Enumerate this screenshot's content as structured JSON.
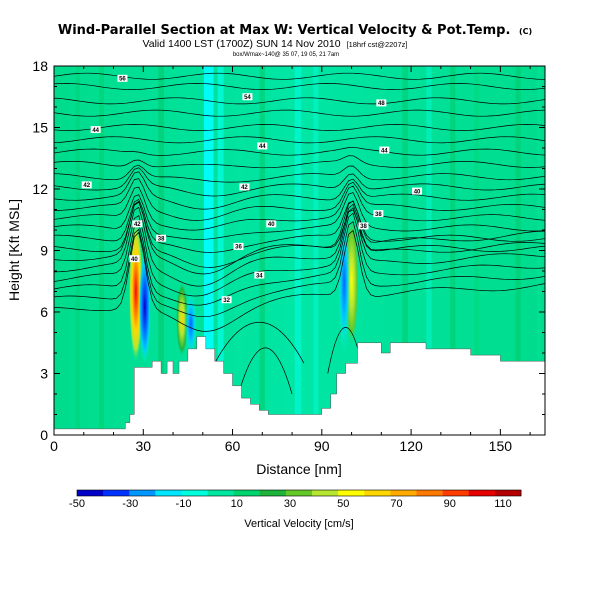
{
  "chart_data": {
    "type": "heatmap",
    "title": "Wind-Parallel Section at Max W: Vertical Velocity & Pot.Temp.",
    "title_mark": "(C)",
    "subtitle": "Valid 1400 LST (1700Z) SUN 14 Nov 2010",
    "subtitle_note": "[18hrf cst@2207z]",
    "small_note": "box/Wmax~140@ 35 07, 19 05, 21 7am",
    "xlabel": "Distance [nm]",
    "ylabel": "Height [Kft MSL]",
    "xlim": [
      0,
      165
    ],
    "ylim": [
      0,
      18
    ],
    "xticks": [
      "0",
      "30",
      "60",
      "90",
      "120",
      "150"
    ],
    "yticks": [
      "0",
      "3",
      "6",
      "9",
      "12",
      "15",
      "18"
    ],
    "colorbar": {
      "label": "Vertical Velocity [cm/s]",
      "tick_labels": [
        "-50",
        "-30",
        "-10",
        "10",
        "30",
        "50",
        "70",
        "90",
        "110"
      ],
      "colors": [
        "#0000c8",
        "#0032ff",
        "#0096ff",
        "#00e6ff",
        "#00ffdc",
        "#00e8a0",
        "#00d46e",
        "#1eb43c",
        "#64c828",
        "#b4e632",
        "#ffff00",
        "#ffd700",
        "#ffaa00",
        "#ff7800",
        "#ff3c00",
        "#e60000",
        "#b40000"
      ]
    },
    "terrain_profile": [
      {
        "x": 0,
        "top": 0.3
      },
      {
        "x": 24,
        "top": 0.3
      },
      {
        "x": 24,
        "top": 0.6
      },
      {
        "x": 25.5,
        "top": 0.6
      },
      {
        "x": 25.5,
        "top": 1.0
      },
      {
        "x": 27,
        "top": 1.0
      },
      {
        "x": 27,
        "top": 3.3
      },
      {
        "x": 33,
        "top": 3.3
      },
      {
        "x": 33,
        "top": 3.6
      },
      {
        "x": 36,
        "top": 3.6
      },
      {
        "x": 36,
        "top": 3.0
      },
      {
        "x": 38,
        "top": 3.0
      },
      {
        "x": 38,
        "top": 3.6
      },
      {
        "x": 40,
        "top": 3.6
      },
      {
        "x": 40,
        "top": 3.0
      },
      {
        "x": 42,
        "top": 3.0
      },
      {
        "x": 42,
        "top": 3.6
      },
      {
        "x": 45,
        "top": 3.6
      },
      {
        "x": 45,
        "top": 4.2
      },
      {
        "x": 48,
        "top": 4.2
      },
      {
        "x": 48,
        "top": 4.8
      },
      {
        "x": 51,
        "top": 4.8
      },
      {
        "x": 51,
        "top": 4.2
      },
      {
        "x": 54,
        "top": 4.2
      },
      {
        "x": 54,
        "top": 3.6
      },
      {
        "x": 57,
        "top": 3.6
      },
      {
        "x": 57,
        "top": 3.0
      },
      {
        "x": 60,
        "top": 3.0
      },
      {
        "x": 60,
        "top": 2.4
      },
      {
        "x": 63,
        "top": 2.4
      },
      {
        "x": 63,
        "top": 1.8
      },
      {
        "x": 66,
        "top": 1.8
      },
      {
        "x": 66,
        "top": 1.5
      },
      {
        "x": 69,
        "top": 1.5
      },
      {
        "x": 69,
        "top": 1.2
      },
      {
        "x": 72,
        "top": 1.2
      },
      {
        "x": 72,
        "top": 1.0
      },
      {
        "x": 90,
        "top": 1.0
      },
      {
        "x": 90,
        "top": 1.3
      },
      {
        "x": 93,
        "top": 1.3
      },
      {
        "x": 93,
        "top": 2.0
      },
      {
        "x": 95,
        "top": 2.0
      },
      {
        "x": 95,
        "top": 3.0
      },
      {
        "x": 98,
        "top": 3.0
      },
      {
        "x": 98,
        "top": 3.5
      },
      {
        "x": 102,
        "top": 3.5
      },
      {
        "x": 102,
        "top": 4.5
      },
      {
        "x": 110,
        "top": 4.5
      },
      {
        "x": 110,
        "top": 4.0
      },
      {
        "x": 113,
        "top": 4.0
      },
      {
        "x": 113,
        "top": 4.5
      },
      {
        "x": 125,
        "top": 4.5
      },
      {
        "x": 125,
        "top": 4.2
      },
      {
        "x": 140,
        "top": 4.2
      },
      {
        "x": 140,
        "top": 3.9
      },
      {
        "x": 150,
        "top": 3.9
      },
      {
        "x": 150,
        "top": 3.6
      },
      {
        "x": 165,
        "top": 3.6
      }
    ],
    "contour_labels": [
      {
        "text": "56",
        "x": 23,
        "y": 17.4
      },
      {
        "text": "54",
        "x": 65,
        "y": 16.5
      },
      {
        "text": "48",
        "x": 110,
        "y": 16.2
      },
      {
        "text": "44",
        "x": 14,
        "y": 14.9
      },
      {
        "text": "44",
        "x": 70,
        "y": 14.1
      },
      {
        "text": "44",
        "x": 111,
        "y": 13.9
      },
      {
        "text": "42",
        "x": 11,
        "y": 12.2
      },
      {
        "text": "42",
        "x": 64,
        "y": 12.1
      },
      {
        "text": "40",
        "x": 122,
        "y": 11.9
      },
      {
        "text": "40",
        "x": 73,
        "y": 10.3
      },
      {
        "text": "38",
        "x": 36,
        "y": 9.6
      },
      {
        "text": "38",
        "x": 109,
        "y": 10.8
      },
      {
        "text": "38",
        "x": 104,
        "y": 10.2
      },
      {
        "text": "36",
        "x": 62,
        "y": 9.2
      },
      {
        "text": "34",
        "x": 69,
        "y": 7.8
      },
      {
        "text": "32",
        "x": 58,
        "y": 6.6
      },
      {
        "text": "42",
        "x": 28,
        "y": 10.3
      },
      {
        "text": "40",
        "x": 27,
        "y": 8.6
      }
    ],
    "velocity_features": [
      {
        "kind": "updraft",
        "x_center": 27.5,
        "y_base": 3.5,
        "y_top": 10.5,
        "peak": 110
      },
      {
        "kind": "downdraft",
        "x_center": 30.5,
        "y_base": 3.5,
        "y_top": 9.0,
        "peak": -50
      },
      {
        "kind": "updraft",
        "x_center": 43,
        "y_base": 3.8,
        "y_top": 7.5,
        "peak": 50
      },
      {
        "kind": "downdraft",
        "x_center": 46,
        "y_base": 3.8,
        "y_top": 7.0,
        "peak": -30
      },
      {
        "kind": "updraft",
        "x_center": 100,
        "y_base": 4.3,
        "y_top": 10.7,
        "peak": 70
      },
      {
        "kind": "downdraft",
        "x_center": 97.5,
        "y_base": 4.0,
        "y_top": 10.8,
        "peak": -40
      }
    ]
  }
}
